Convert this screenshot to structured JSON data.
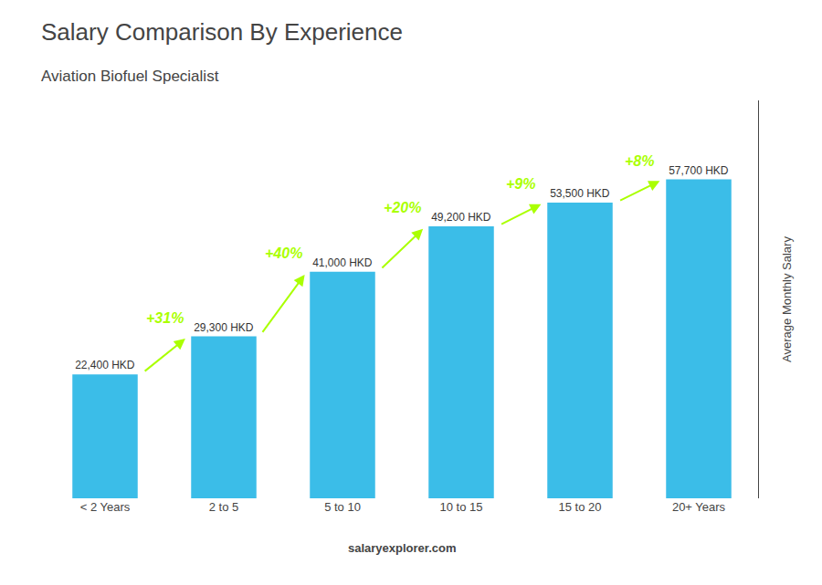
{
  "chart_data": {
    "type": "bar",
    "title": "Salary Comparison By Experience",
    "subtitle": "Aviation Biofuel Specialist",
    "categories": [
      "< 2 Years",
      "2 to 5",
      "5 to 10",
      "10 to 15",
      "15 to 20",
      "20+ Years"
    ],
    "values": [
      22400,
      29300,
      41000,
      49200,
      53500,
      57700
    ],
    "value_labels": [
      "22,400 HKD",
      "29,300 HKD",
      "41,000 HKD",
      "49,200 HKD",
      "53,500 HKD",
      "57,700 HKD"
    ],
    "data_labels": true,
    "color": "#3bbde8",
    "ylabel": "Average Monthly Salary",
    "ylim": [
      0,
      72000
    ],
    "yticks": [],
    "tick_labels": "x",
    "grid": false,
    "annotations": [
      {
        "text": "+31%",
        "color": "#aaff00"
      },
      {
        "text": "+40%",
        "color": "#aaff00"
      },
      {
        "text": "+20%",
        "color": "#aaff00"
      },
      {
        "text": "+9%",
        "color": "#aaff00"
      },
      {
        "text": "+8%",
        "color": "#aaff00"
      }
    ],
    "footer": "salaryexplorer.com"
  }
}
